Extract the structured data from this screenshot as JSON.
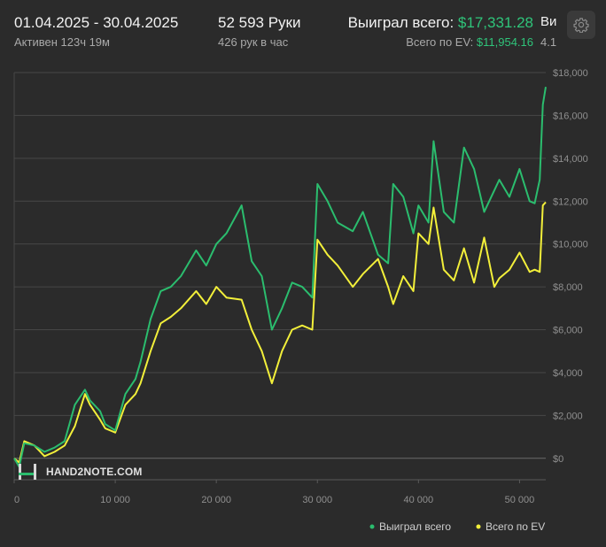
{
  "header": {
    "date_range": "01.04.2025 - 30.04.2025",
    "active_time": "Активен 123ч 19м",
    "hands_count": "52 593 Руки",
    "hands_per_hour": "426 рук в час",
    "won_total_label": "Выиграл всего:",
    "won_total_value": "$17,331.28",
    "ev_total_label": "Всего по EV:",
    "ev_total_value": "$11,954.16",
    "cut_label": "Ви",
    "cut_value": "4.1"
  },
  "logo_text": "HAND2NOTE.COM",
  "icons": {
    "settings": "gear-icon",
    "logo": "hand2note-logo-icon"
  },
  "colors": {
    "won": "#2bbd6e",
    "ev": "#f2ef3a",
    "background": "#2b2b2b",
    "grid": "#4a4a4a"
  },
  "chart_data": {
    "type": "line",
    "xlabel": "",
    "ylabel": "",
    "xlim": [
      0,
      52593
    ],
    "ylim": [
      -1000,
      18000
    ],
    "x_ticks": [
      0,
      10000,
      20000,
      30000,
      40000,
      50000
    ],
    "x_tick_labels": [
      "0",
      "10 000",
      "20 000",
      "30 000",
      "40 000",
      "50 000"
    ],
    "y_ticks": [
      0,
      2000,
      4000,
      6000,
      8000,
      10000,
      12000,
      14000,
      16000,
      18000
    ],
    "y_tick_labels": [
      "$0",
      "$2,000",
      "$4,000",
      "$6,000",
      "$8,000",
      "$10,000",
      "$12,000",
      "$14,000",
      "$16,000",
      "$18,000"
    ],
    "grid": true,
    "legend_position": "bottom-right",
    "x": [
      0,
      500,
      1000,
      2000,
      3000,
      4000,
      5000,
      6000,
      7000,
      7500,
      8500,
      9000,
      10000,
      11000,
      12000,
      12500,
      13500,
      14500,
      15500,
      16500,
      18000,
      19000,
      20000,
      21000,
      22500,
      23500,
      24500,
      25500,
      26500,
      27500,
      28500,
      29500,
      30000,
      31000,
      32000,
      33500,
      34500,
      36000,
      37000,
      37500,
      38500,
      39500,
      40000,
      41000,
      41500,
      42500,
      43500,
      44500,
      45500,
      46500,
      47500,
      48000,
      49000,
      50000,
      51000,
      51500,
      52000,
      52300,
      52593
    ],
    "series": [
      {
        "name": "Выиграл всего",
        "values": [
          0,
          -400,
          700,
          600,
          300,
          500,
          800,
          2500,
          3200,
          2700,
          2200,
          1600,
          1300,
          3000,
          3700,
          4500,
          6500,
          7800,
          8000,
          8500,
          9700,
          9000,
          10000,
          10500,
          11800,
          9200,
          8500,
          6000,
          7000,
          8200,
          8000,
          7500,
          12800,
          12000,
          11000,
          10600,
          11500,
          9500,
          9100,
          12800,
          12200,
          10500,
          11800,
          11000,
          14800,
          11500,
          11000,
          14500,
          13500,
          11500,
          12500,
          13000,
          12200,
          13500,
          12000,
          11900,
          13000,
          16500,
          17331
        ]
      },
      {
        "name": "Всего по EV",
        "values": [
          0,
          -200,
          800,
          600,
          100,
          300,
          600,
          1500,
          3000,
          2500,
          1800,
          1400,
          1200,
          2500,
          3000,
          3500,
          5000,
          6300,
          6600,
          7000,
          7800,
          7200,
          8000,
          7500,
          7400,
          6000,
          5000,
          3500,
          5000,
          6000,
          6200,
          6000,
          10200,
          9500,
          9000,
          8000,
          8600,
          9300,
          8000,
          7200,
          8500,
          7800,
          10500,
          10000,
          11700,
          8800,
          8300,
          9800,
          8200,
          10300,
          8000,
          8400,
          8800,
          9600,
          8700,
          8800,
          8700,
          11800,
          11954
        ]
      }
    ]
  }
}
